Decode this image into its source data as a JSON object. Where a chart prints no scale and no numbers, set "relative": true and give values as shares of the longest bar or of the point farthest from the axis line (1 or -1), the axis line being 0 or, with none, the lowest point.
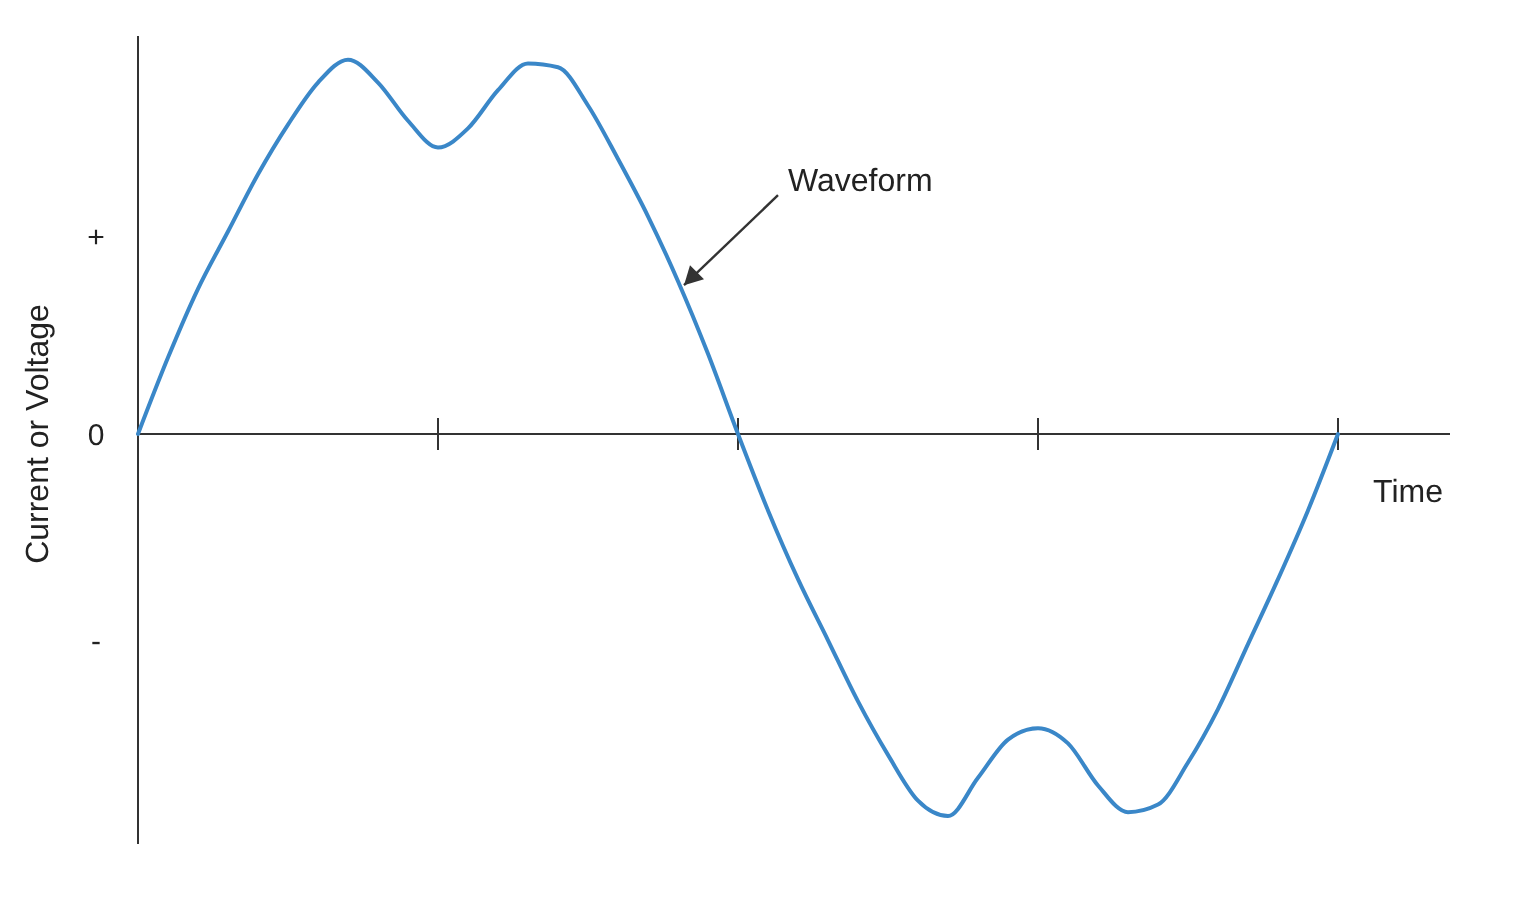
{
  "chart_data": {
    "type": "line",
    "relative": true,
    "xlabel": "Time",
    "ylabel": "Current or Voltage",
    "categories": [
      null,
      null,
      null,
      null,
      null,
      null,
      null,
      null,
      null,
      null,
      null,
      null,
      null,
      null,
      null,
      null,
      null,
      null,
      null,
      null,
      null,
      null,
      null,
      null,
      null,
      null,
      null,
      null,
      null,
      null,
      null,
      null,
      null,
      null,
      null,
      null,
      null,
      null,
      null,
      null,
      null
    ],
    "series": [
      {
        "color": "#3a87c8",
        "values": [
          0,
          0.2,
          0.38,
          0.53,
          0.68,
          0.81,
          0.92,
          0.98,
          0.92,
          0.82,
          0.75,
          0.8,
          0.9,
          0.97,
          0.96,
          0.86,
          0.72,
          0.57,
          0.4,
          0.21,
          0,
          -0.2,
          -0.38,
          -0.54,
          -0.7,
          -0.84,
          -0.96,
          -1,
          -0.9,
          -0.8,
          -0.77,
          -0.81,
          -0.92,
          -0.99,
          -0.97,
          -0.86,
          -0.72,
          -0.55,
          -0.38,
          -0.2,
          0
        ]
      }
    ],
    "annotations": [
      "Waveform",
      "+",
      "0",
      "-"
    ],
    "marker": "none",
    "line_style": "solid"
  }
}
